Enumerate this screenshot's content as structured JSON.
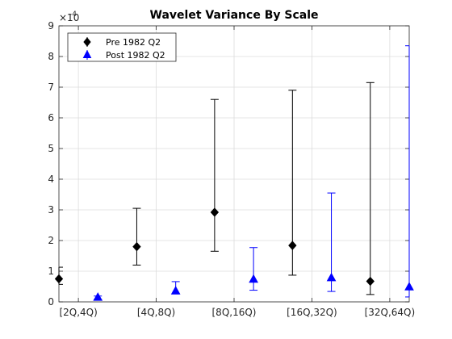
{
  "chart_data": {
    "type": "scatter",
    "title": "Wavelet Variance By Scale",
    "xlabel": "",
    "ylabel": "",
    "y_multiplier_label": "×10",
    "y_multiplier_exponent": "-4",
    "categories": [
      "[2Q,4Q)",
      "[4Q,8Q)",
      "[8Q,16Q)",
      "[16Q,32Q)",
      "[32Q,64Q)"
    ],
    "x_ticks": [
      1,
      2,
      3,
      4,
      5
    ],
    "xlim": [
      0.75,
      5.25
    ],
    "ylim": [
      0,
      9
    ],
    "y_ticks": [
      0,
      1,
      2,
      3,
      4,
      5,
      6,
      7,
      8,
      9
    ],
    "grid": true,
    "legend_position": "top-left",
    "series": [
      {
        "name": "Pre 1982 Q2",
        "color": "#000000",
        "marker": "diamond",
        "x": [
          0.75,
          1.75,
          2.75,
          3.75,
          4.75
        ],
        "y": [
          0.75,
          1.8,
          2.92,
          1.84,
          0.67
        ],
        "lower": [
          0.57,
          1.2,
          1.65,
          0.87,
          0.24
        ],
        "upper": [
          1.13,
          3.05,
          6.6,
          6.9,
          7.15
        ]
      },
      {
        "name": "Post 1982 Q2",
        "color": "#0000ff",
        "marker": "triangle",
        "x": [
          1.25,
          2.25,
          3.25,
          4.25,
          5.25
        ],
        "y": [
          0.14,
          0.35,
          0.73,
          0.78,
          0.48
        ],
        "lower": [
          0.08,
          0.26,
          0.38,
          0.34,
          0.16
        ],
        "upper": [
          0.19,
          0.66,
          1.77,
          3.55,
          8.35
        ]
      }
    ]
  }
}
